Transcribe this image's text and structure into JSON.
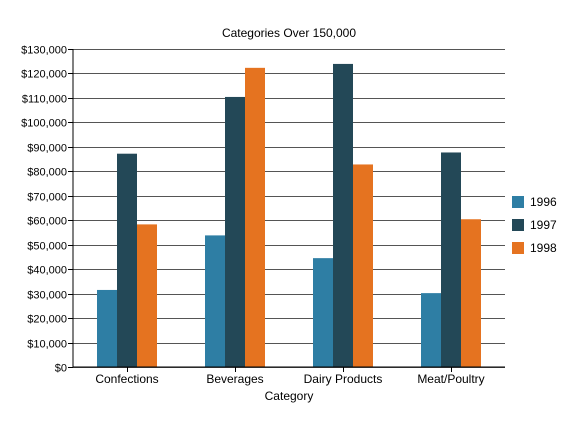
{
  "chart_data": {
    "type": "bar",
    "title": "Categories Over 150,000",
    "xlabel": "Category",
    "ylabel": "",
    "categories": [
      "Confections",
      "Beverages",
      "Dairy Products",
      "Meat/Poultry"
    ],
    "series": [
      {
        "name": "1996",
        "color": "#2e7ea4",
        "values": [
          31500,
          53800,
          44500,
          30200
        ]
      },
      {
        "name": "1997",
        "color": "#234857",
        "values": [
          87200,
          110400,
          123900,
          87700
        ]
      },
      {
        "name": "1998",
        "color": "#e57320",
        "values": [
          58300,
          122300,
          82800,
          60400
        ]
      }
    ],
    "ylim": [
      0,
      130000
    ],
    "ytick_step": 10000,
    "ytick_format": "currency",
    "currency_symbol": "$",
    "grid": true,
    "legend_position": "right"
  }
}
